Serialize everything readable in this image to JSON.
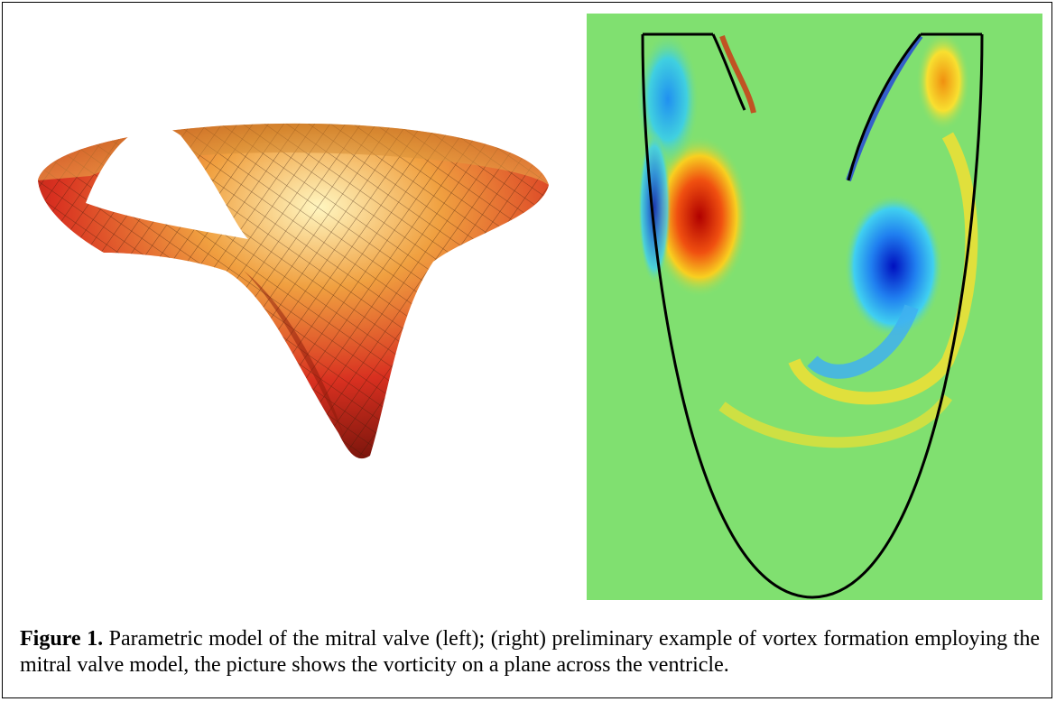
{
  "figure": {
    "label": "Figure 1.",
    "caption": "Parametric model of the mitral valve (left); (right) preliminary example of vortex formation employing the mitral valve model, the picture shows the vorticity on a plane across the ventricle."
  }
}
